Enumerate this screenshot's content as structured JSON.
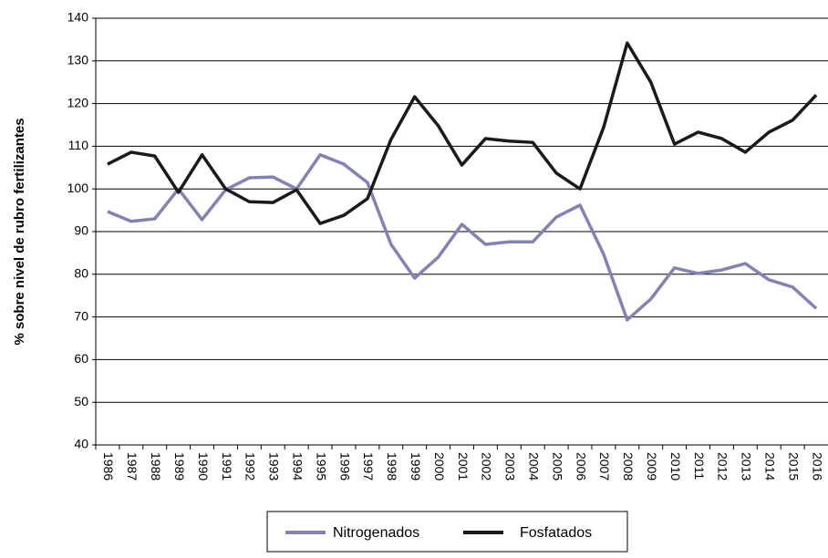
{
  "chart_data": {
    "type": "line",
    "y_label": "% sobre nivel de rubro fertilizantes",
    "categories": [
      "1986",
      "1987",
      "1988",
      "1989",
      "1990",
      "1991",
      "1992",
      "1993",
      "1994",
      "1995",
      "1996",
      "1997",
      "1998",
      "1999",
      "2000",
      "2001",
      "2002",
      "2003",
      "2004",
      "2005",
      "2006",
      "2007",
      "2008",
      "2009",
      "2010",
      "2011",
      "2012",
      "2013",
      "2014",
      "2015",
      "2016"
    ],
    "series": [
      {
        "name": "Nitrogenados",
        "color": "#8282b4",
        "values": [
          94.7,
          92.4,
          93,
          100,
          92.8,
          99.8,
          102.6,
          102.8,
          100,
          108,
          105.8,
          101.5,
          87,
          79.1,
          84,
          91.7,
          87,
          87.6,
          87.6,
          93.4,
          96.2,
          84.7,
          69.3,
          74.2,
          81.5,
          80.2,
          81,
          82.5,
          78.7,
          77,
          72
        ]
      },
      {
        "name": "Fosfatados",
        "color": "#1a1a1a",
        "values": [
          105.8,
          108.6,
          107.7,
          99.2,
          108,
          100,
          97,
          96.8,
          99.8,
          91.9,
          93.8,
          97.7,
          111.6,
          121.6,
          114.8,
          105.6,
          111.8,
          111.2,
          110.9,
          103.7,
          100,
          114.4,
          134.2,
          125,
          110.5,
          113.3,
          111.8,
          108.6,
          113.3,
          116.1,
          122
        ]
      }
    ],
    "ylim": [
      40,
      140
    ],
    "yticks": [
      40,
      50,
      60,
      70,
      80,
      90,
      100,
      110,
      120,
      130,
      140
    ],
    "grid": true
  }
}
